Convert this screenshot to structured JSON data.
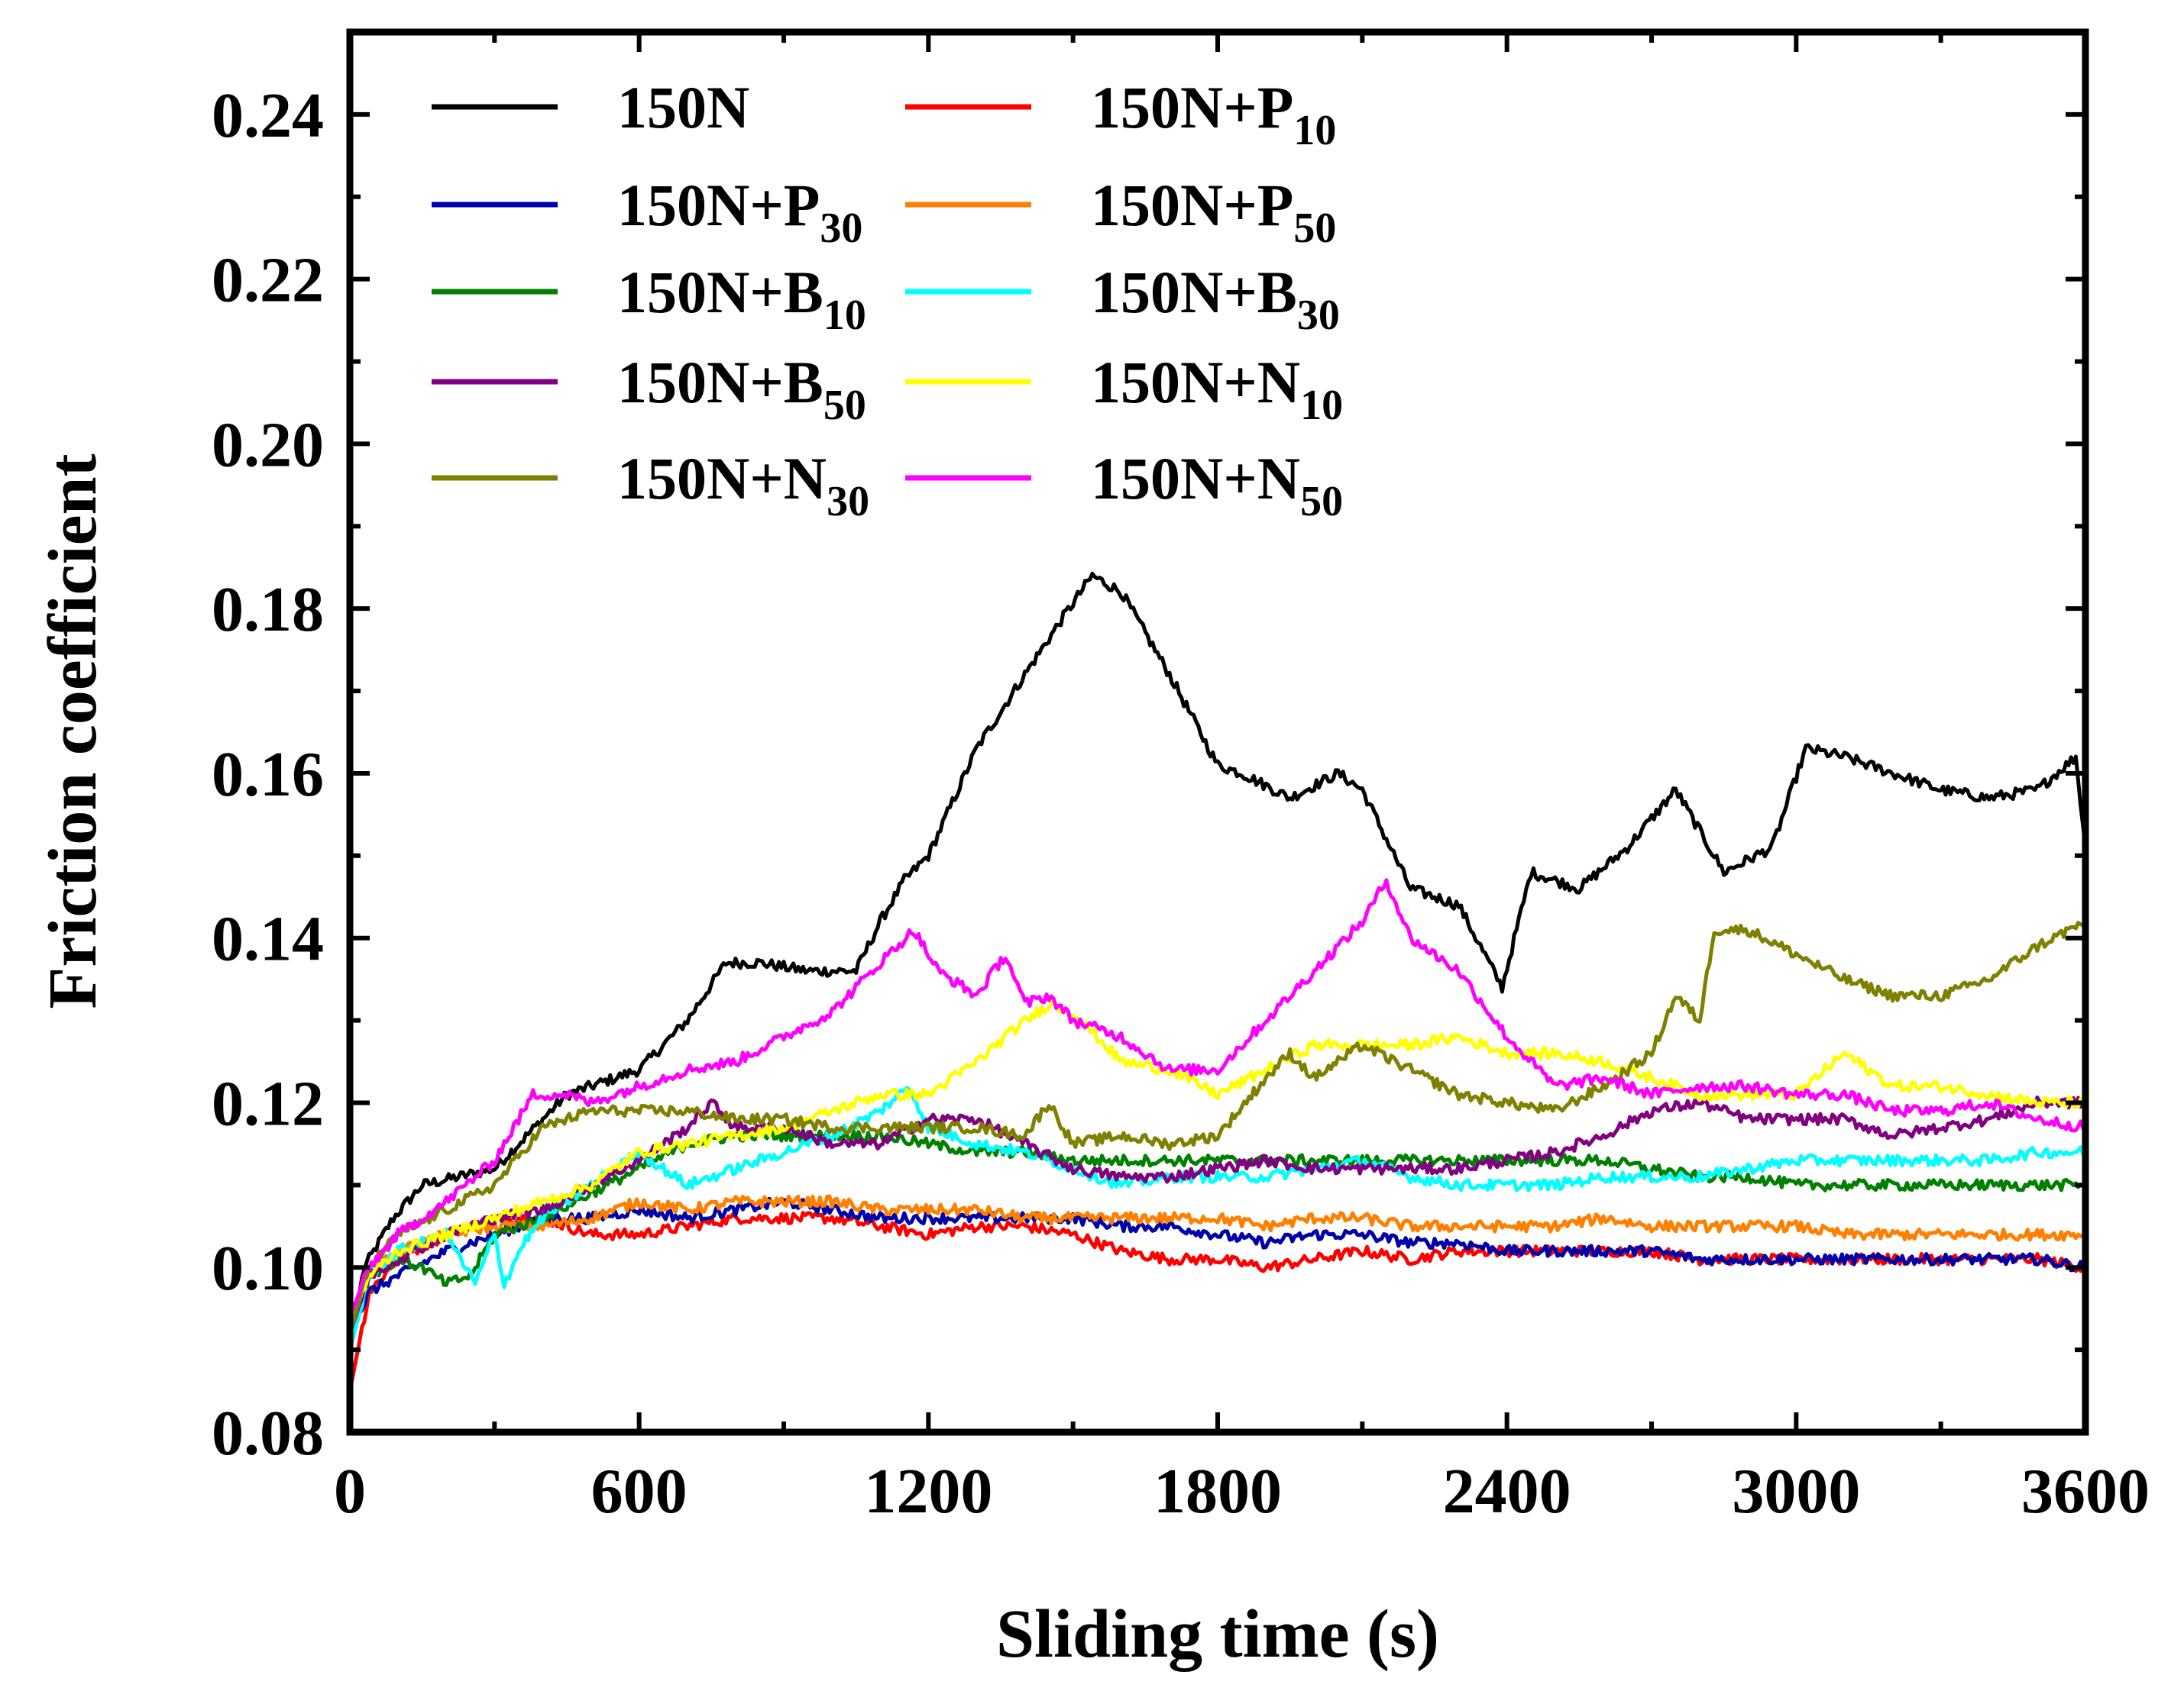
{
  "chart_data": {
    "type": "line",
    "title": "",
    "xlabel": "Sliding time (s)",
    "ylabel": "Friction coefficient",
    "xlim": [
      0,
      3600
    ],
    "ylim": [
      0.08,
      0.25
    ],
    "xticks": [
      0,
      600,
      1200,
      1800,
      2400,
      3000,
      3600
    ],
    "xtick_labels": [
      "0",
      "600",
      "1200",
      "1800",
      "2400",
      "3000",
      "3600"
    ],
    "yticks": [
      0.08,
      0.1,
      0.12,
      0.14,
      0.16,
      0.18,
      0.2,
      0.22,
      0.24
    ],
    "ytick_labels": [
      "0.08",
      "0.10",
      "0.12",
      "0.14",
      "0.16",
      "0.18",
      "0.20",
      "0.22",
      "0.24"
    ],
    "grid": false,
    "legend_position": "top-left",
    "series": [
      {
        "name": "150N",
        "base": "150N",
        "sub": "",
        "color": "#000000",
        "x": [
          0,
          30,
          90,
          150,
          300,
          450,
          600,
          700,
          780,
          850,
          950,
          1050,
          1100,
          1150,
          1200,
          1300,
          1400,
          1480,
          1540,
          1600,
          1700,
          1800,
          1850,
          1950,
          2050,
          2100,
          2150,
          2200,
          2300,
          2390,
          2450,
          2550,
          2650,
          2750,
          2850,
          2950,
          3020,
          3100,
          3200,
          3300,
          3400,
          3500,
          3580,
          3600
        ],
        "y": [
          0.091,
          0.1,
          0.106,
          0.11,
          0.112,
          0.121,
          0.124,
          0.13,
          0.137,
          0.137,
          0.136,
          0.136,
          0.142,
          0.147,
          0.15,
          0.163,
          0.172,
          0.179,
          0.184,
          0.182,
          0.172,
          0.161,
          0.16,
          0.157,
          0.16,
          0.158,
          0.152,
          0.146,
          0.144,
          0.134,
          0.148,
          0.146,
          0.151,
          0.158,
          0.148,
          0.151,
          0.163,
          0.162,
          0.16,
          0.158,
          0.157,
          0.158,
          0.162,
          0.151
        ]
      },
      {
        "name": "150N+P10",
        "base": "150N+P",
        "sub": "10",
        "color": "#ff0000",
        "x": [
          0,
          40,
          100,
          200,
          300,
          400,
          500,
          600,
          700,
          800,
          900,
          1000,
          1100,
          1200,
          1300,
          1400,
          1500,
          1600,
          1700,
          1800,
          1900,
          2000,
          2100,
          2200,
          2300,
          2400,
          2500,
          2600,
          2700,
          2800,
          2900,
          3000,
          3100,
          3200,
          3300,
          3400,
          3500,
          3600
        ],
        "y": [
          0.085,
          0.097,
          0.101,
          0.104,
          0.106,
          0.106,
          0.104,
          0.104,
          0.105,
          0.106,
          0.106,
          0.106,
          0.105,
          0.104,
          0.105,
          0.105,
          0.104,
          0.102,
          0.101,
          0.101,
          0.1,
          0.101,
          0.102,
          0.101,
          0.102,
          0.102,
          0.102,
          0.102,
          0.102,
          0.101,
          0.101,
          0.101,
          0.101,
          0.101,
          0.101,
          0.101,
          0.101,
          0.1
        ]
      },
      {
        "name": "150N+P30",
        "base": "150N+P",
        "sub": "30",
        "color": "#0000aa",
        "x": [
          0,
          40,
          100,
          200,
          300,
          400,
          500,
          600,
          700,
          800,
          900,
          1000,
          1100,
          1200,
          1300,
          1400,
          1500,
          1600,
          1700,
          1800,
          1900,
          2000,
          2100,
          2200,
          2300,
          2400,
          2500,
          2600,
          2700,
          2800,
          2900,
          3000,
          3100,
          3200,
          3300,
          3400,
          3500,
          3600
        ],
        "y": [
          0.092,
          0.097,
          0.099,
          0.102,
          0.104,
          0.106,
          0.106,
          0.107,
          0.106,
          0.107,
          0.108,
          0.107,
          0.106,
          0.106,
          0.106,
          0.106,
          0.106,
          0.105,
          0.105,
          0.104,
          0.103,
          0.104,
          0.104,
          0.103,
          0.103,
          0.102,
          0.102,
          0.102,
          0.102,
          0.101,
          0.101,
          0.101,
          0.101,
          0.101,
          0.101,
          0.101,
          0.101,
          0.1
        ]
      },
      {
        "name": "150N+P50",
        "base": "150N+P",
        "sub": "50",
        "color": "#ff8000",
        "x": [
          0,
          40,
          100,
          200,
          300,
          400,
          500,
          600,
          700,
          800,
          900,
          1000,
          1100,
          1200,
          1300,
          1400,
          1500,
          1600,
          1700,
          1800,
          1900,
          2000,
          2100,
          2200,
          2300,
          2400,
          2500,
          2600,
          2700,
          2800,
          2900,
          3000,
          3100,
          3200,
          3300,
          3400,
          3500,
          3600
        ],
        "y": [
          0.093,
          0.099,
          0.102,
          0.104,
          0.105,
          0.105,
          0.106,
          0.108,
          0.107,
          0.108,
          0.108,
          0.108,
          0.107,
          0.107,
          0.107,
          0.106,
          0.106,
          0.106,
          0.106,
          0.106,
          0.105,
          0.106,
          0.106,
          0.105,
          0.105,
          0.105,
          0.105,
          0.106,
          0.105,
          0.105,
          0.105,
          0.105,
          0.104,
          0.104,
          0.104,
          0.104,
          0.104,
          0.104
        ]
      },
      {
        "name": "150N+B10",
        "base": "150N+B",
        "sub": "10",
        "color": "#008000",
        "x": [
          0,
          40,
          100,
          150,
          200,
          250,
          300,
          400,
          500,
          600,
          700,
          800,
          900,
          1000,
          1100,
          1200,
          1300,
          1400,
          1500,
          1600,
          1700,
          1800,
          1900,
          2000,
          2100,
          2200,
          2300,
          2400,
          2500,
          2600,
          2700,
          2800,
          2900,
          3000,
          3100,
          3200,
          3300,
          3400,
          3500,
          3600
        ],
        "y": [
          0.091,
          0.099,
          0.101,
          0.1,
          0.098,
          0.099,
          0.104,
          0.106,
          0.109,
          0.112,
          0.115,
          0.116,
          0.116,
          0.116,
          0.116,
          0.115,
          0.114,
          0.114,
          0.113,
          0.113,
          0.113,
          0.113,
          0.113,
          0.113,
          0.113,
          0.113,
          0.113,
          0.113,
          0.113,
          0.113,
          0.112,
          0.111,
          0.111,
          0.11,
          0.11,
          0.11,
          0.11,
          0.11,
          0.11,
          0.11
        ]
      },
      {
        "name": "150N+B30",
        "base": "150N+B",
        "sub": "30",
        "color": "#00ffff",
        "x": [
          0,
          40,
          100,
          200,
          260,
          300,
          320,
          360,
          400,
          500,
          600,
          700,
          800,
          900,
          1000,
          1100,
          1160,
          1200,
          1300,
          1400,
          1500,
          1600,
          1700,
          1800,
          1900,
          2000,
          2100,
          2200,
          2300,
          2400,
          2500,
          2600,
          2700,
          2800,
          2900,
          3000,
          3100,
          3200,
          3300,
          3400,
          3500,
          3600
        ],
        "y": [
          0.09,
          0.099,
          0.102,
          0.104,
          0.098,
          0.104,
          0.098,
          0.103,
          0.106,
          0.11,
          0.114,
          0.11,
          0.112,
          0.114,
          0.116,
          0.119,
          0.122,
          0.117,
          0.115,
          0.114,
          0.112,
          0.11,
          0.111,
          0.111,
          0.111,
          0.112,
          0.113,
          0.111,
          0.11,
          0.11,
          0.11,
          0.111,
          0.111,
          0.111,
          0.112,
          0.113,
          0.113,
          0.113,
          0.113,
          0.113,
          0.114,
          0.114
        ]
      },
      {
        "name": "150N+B50",
        "base": "150N+B",
        "sub": "50",
        "color": "#800080",
        "x": [
          0,
          40,
          100,
          200,
          300,
          400,
          500,
          600,
          700,
          750,
          800,
          900,
          1000,
          1100,
          1200,
          1300,
          1400,
          1500,
          1600,
          1700,
          1800,
          1900,
          2000,
          2100,
          2200,
          2300,
          2400,
          2500,
          2600,
          2700,
          2800,
          2900,
          3000,
          3100,
          3200,
          3300,
          3400,
          3500,
          3600
        ],
        "y": [
          0.092,
          0.099,
          0.101,
          0.104,
          0.106,
          0.107,
          0.11,
          0.113,
          0.117,
          0.12,
          0.117,
          0.117,
          0.115,
          0.115,
          0.118,
          0.118,
          0.115,
          0.112,
          0.111,
          0.111,
          0.112,
          0.113,
          0.112,
          0.112,
          0.112,
          0.112,
          0.113,
          0.114,
          0.116,
          0.119,
          0.12,
          0.118,
          0.118,
          0.118,
          0.116,
          0.117,
          0.118,
          0.12,
          0.12
        ]
      },
      {
        "name": "150N+N10",
        "base": "150N+N",
        "sub": "10",
        "color": "#ffff00",
        "x": [
          0,
          40,
          100,
          200,
          300,
          400,
          500,
          600,
          700,
          800,
          900,
          1000,
          1100,
          1200,
          1300,
          1380,
          1450,
          1500,
          1550,
          1600,
          1700,
          1800,
          1900,
          2000,
          2100,
          2200,
          2300,
          2400,
          2500,
          2600,
          2700,
          2800,
          2900,
          3000,
          3100,
          3200,
          3300,
          3400,
          3500,
          3600
        ],
        "y": [
          0.093,
          0.099,
          0.102,
          0.104,
          0.106,
          0.108,
          0.11,
          0.114,
          0.115,
          0.116,
          0.117,
          0.119,
          0.121,
          0.121,
          0.125,
          0.129,
          0.132,
          0.131,
          0.128,
          0.125,
          0.124,
          0.121,
          0.124,
          0.127,
          0.127,
          0.127,
          0.128,
          0.126,
          0.126,
          0.125,
          0.123,
          0.121,
          0.121,
          0.121,
          0.126,
          0.122,
          0.122,
          0.121,
          0.12,
          0.12
        ]
      },
      {
        "name": "150N+N30",
        "base": "150N+N",
        "sub": "30",
        "color": "#808000",
        "x": [
          0,
          40,
          100,
          200,
          300,
          400,
          500,
          600,
          700,
          800,
          900,
          1000,
          1100,
          1200,
          1300,
          1400,
          1450,
          1500,
          1600,
          1700,
          1800,
          1900,
          1950,
          2000,
          2100,
          2200,
          2300,
          2400,
          2500,
          2600,
          2700,
          2750,
          2800,
          2830,
          2900,
          3000,
          3100,
          3200,
          3300,
          3400,
          3500,
          3600
        ],
        "y": [
          0.092,
          0.1,
          0.104,
          0.107,
          0.11,
          0.117,
          0.119,
          0.119,
          0.119,
          0.118,
          0.118,
          0.117,
          0.117,
          0.117,
          0.117,
          0.116,
          0.12,
          0.115,
          0.116,
          0.115,
          0.116,
          0.123,
          0.126,
          0.123,
          0.127,
          0.124,
          0.121,
          0.12,
          0.119,
          0.122,
          0.126,
          0.133,
          0.13,
          0.141,
          0.141,
          0.138,
          0.135,
          0.133,
          0.133,
          0.135,
          0.139,
          0.142
        ]
      },
      {
        "name": "150N+N50",
        "base": "150N+N",
        "sub": "50",
        "color": "#ff00ff",
        "x": [
          0,
          40,
          100,
          200,
          300,
          380,
          450,
          500,
          600,
          700,
          800,
          900,
          1000,
          1100,
          1170,
          1220,
          1300,
          1360,
          1400,
          1450,
          1500,
          1600,
          1700,
          1800,
          1900,
          2000,
          2100,
          2150,
          2200,
          2300,
          2400,
          2500,
          2600,
          2700,
          2800,
          2900,
          3000,
          3100,
          3200,
          3300,
          3400,
          3500,
          3600
        ],
        "y": [
          0.094,
          0.1,
          0.104,
          0.108,
          0.113,
          0.121,
          0.121,
          0.12,
          0.122,
          0.124,
          0.125,
          0.128,
          0.131,
          0.137,
          0.141,
          0.136,
          0.133,
          0.138,
          0.132,
          0.133,
          0.13,
          0.128,
          0.124,
          0.124,
          0.13,
          0.136,
          0.142,
          0.147,
          0.14,
          0.136,
          0.128,
          0.122,
          0.123,
          0.121,
          0.122,
          0.122,
          0.121,
          0.121,
          0.119,
          0.119,
          0.12,
          0.118,
          0.117
        ]
      }
    ]
  }
}
